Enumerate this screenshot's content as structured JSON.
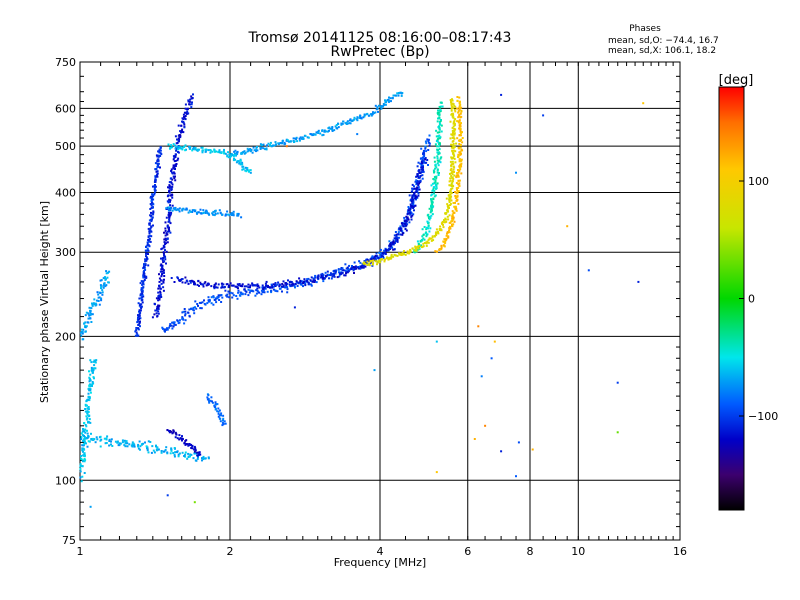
{
  "chart_data": {
    "type": "scatter",
    "title": "Tromsø 20141125 08:16:00–08:17:43",
    "subtitle": "RwPretec (Bp)",
    "xlabel": "Frequency [MHz]",
    "ylabel": "Stationary phase Virtual Height [km]",
    "x_scale": "log",
    "y_scale": "log",
    "xlim": [
      1,
      16
    ],
    "ylim": [
      75,
      750
    ],
    "x_ticks": [
      1,
      2,
      4,
      6,
      8,
      10,
      16
    ],
    "x_tick_labels": [
      "1",
      "2",
      "4",
      "6",
      "8",
      "10",
      "16"
    ],
    "x_grid": [
      1,
      2,
      4,
      6,
      8,
      10,
      16
    ],
    "y_ticks": [
      75,
      100,
      200,
      300,
      400,
      500,
      600,
      750
    ],
    "y_tick_labels": [
      "75",
      "100",
      "200",
      "300",
      "400",
      "500",
      "600",
      "750"
    ],
    "y_grid": [
      100,
      200,
      300,
      400,
      500,
      600
    ],
    "grid": true,
    "phases": {
      "title": "Phases",
      "line_o": "mean, sd,O: −74.4, 16.7",
      "line_x": "mean, sd,X: 106.1, 18.2"
    },
    "colorbar": {
      "label": "[deg]",
      "range": [
        -180,
        180
      ],
      "ticks": [
        100,
        0,
        -100
      ],
      "tick_labels": [
        "100",
        "0",
        "−100"
      ]
    },
    "traces": [
      {
        "x": [
          1.46,
          1.5,
          1.55,
          1.6,
          1.65,
          1.7,
          1.8,
          1.9,
          2.0,
          2.2,
          2.5,
          2.8,
          3.1,
          3.4,
          3.7,
          4.0,
          4.2,
          4.4,
          4.6,
          4.8,
          5.0
        ],
        "y": [
          205,
          208,
          213,
          218,
          224,
          230,
          236,
          241,
          244,
          247,
          252,
          258,
          266,
          274,
          283,
          295,
          310,
          330,
          365,
          430,
          520
        ],
        "phase": -95,
        "spread": 0.03
      },
      {
        "x": [
          1.55,
          1.7,
          1.9,
          2.2,
          2.5,
          2.9,
          3.3,
          3.8,
          4.2,
          4.6,
          4.9
        ],
        "y": [
          265,
          260,
          255,
          254,
          256,
          262,
          270,
          284,
          305,
          360,
          470
        ],
        "phase": -115,
        "spread": 0.025
      },
      {
        "x": [
          4.7,
          4.85,
          5.0,
          5.1,
          5.2,
          5.25,
          5.3
        ],
        "y": [
          300,
          315,
          340,
          380,
          440,
          520,
          620
        ],
        "phase": -40,
        "spread": 0.02
      },
      {
        "x": [
          3.7,
          4.0,
          4.3,
          4.6,
          4.9,
          5.1,
          5.3,
          5.45,
          5.55,
          5.6,
          5.62,
          5.6
        ],
        "y": [
          282,
          288,
          295,
          302,
          310,
          320,
          335,
          360,
          400,
          460,
          540,
          630
        ],
        "phase": 80,
        "spread": 0.018
      },
      {
        "x": [
          5.2,
          5.4,
          5.55,
          5.7,
          5.78,
          5.8,
          5.75
        ],
        "y": [
          300,
          315,
          340,
          390,
          460,
          540,
          630
        ],
        "phase": 115,
        "spread": 0.015
      },
      {
        "x": [
          2.0,
          2.4,
          2.8,
          3.2,
          3.6,
          3.9,
          4.1,
          4.3,
          4.45
        ],
        "y": [
          480,
          500,
          520,
          545,
          570,
          590,
          615,
          640,
          645
        ],
        "phase": -70,
        "spread": 0.02
      },
      {
        "x": [
          1.42,
          1.45,
          1.47,
          1.5,
          1.52,
          1.55,
          1.58,
          1.62,
          1.65,
          1.68
        ],
        "y": [
          220,
          250,
          290,
          340,
          400,
          460,
          520,
          570,
          610,
          640
        ],
        "phase": -115,
        "spread": 0.02
      },
      {
        "x": [
          1.3,
          1.34,
          1.38,
          1.41,
          1.45
        ],
        "y": [
          200,
          260,
          330,
          410,
          500
        ],
        "phase": -105,
        "spread": 0.015
      },
      {
        "x": [
          1.5,
          1.65,
          1.8,
          1.95,
          2.05,
          2.2
        ],
        "y": [
          500,
          495,
          490,
          485,
          470,
          440
        ],
        "phase": -60,
        "spread": 0.02
      },
      {
        "x": [
          1.5,
          1.7,
          1.9,
          2.1
        ],
        "y": [
          370,
          365,
          362,
          360
        ],
        "phase": -75,
        "spread": 0.02
      },
      {
        "x": [
          1.0,
          1.06,
          1.12,
          1.2,
          1.3,
          1.4,
          1.5,
          1.6,
          1.7,
          1.8
        ],
        "y": [
          124,
          122,
          121,
          120,
          119,
          117,
          115,
          113,
          112,
          110
        ],
        "phase": -65,
        "spread": 0.035
      },
      {
        "x": [
          1.0,
          1.03,
          1.06,
          1.1,
          1.14
        ],
        "y": [
          200,
          215,
          230,
          250,
          275
        ],
        "phase": -70,
        "spread": 0.03
      },
      {
        "x": [
          1.0,
          1.02,
          1.04,
          1.05,
          1.07
        ],
        "y": [
          100,
          120,
          145,
          160,
          180
        ],
        "phase": -60,
        "spread": 0.025
      },
      {
        "x": [
          1.5,
          1.6,
          1.7,
          1.75
        ],
        "y": [
          128,
          122,
          116,
          112
        ],
        "phase": -120,
        "spread": 0.015
      },
      {
        "x": [
          1.8,
          1.85,
          1.9,
          1.95
        ],
        "y": [
          150,
          145,
          140,
          130
        ],
        "phase": -85,
        "spread": 0.02
      }
    ],
    "points": [
      {
        "x": 7.0,
        "y": 640,
        "phase": -110
      },
      {
        "x": 8.5,
        "y": 580,
        "phase": -100
      },
      {
        "x": 13.5,
        "y": 615,
        "phase": 110
      },
      {
        "x": 7.5,
        "y": 440,
        "phase": -75
      },
      {
        "x": 9.5,
        "y": 340,
        "phase": 120
      },
      {
        "x": 10.5,
        "y": 275,
        "phase": -95
      },
      {
        "x": 13.2,
        "y": 260,
        "phase": -110
      },
      {
        "x": 6.3,
        "y": 210,
        "phase": 140
      },
      {
        "x": 6.8,
        "y": 195,
        "phase": 115
      },
      {
        "x": 6.7,
        "y": 180,
        "phase": -90
      },
      {
        "x": 6.4,
        "y": 165,
        "phase": -80
      },
      {
        "x": 5.2,
        "y": 195,
        "phase": -60
      },
      {
        "x": 6.5,
        "y": 130,
        "phase": 140
      },
      {
        "x": 6.2,
        "y": 122,
        "phase": 120
      },
      {
        "x": 7.0,
        "y": 115,
        "phase": -110
      },
      {
        "x": 7.6,
        "y": 120,
        "phase": -95
      },
      {
        "x": 8.1,
        "y": 116,
        "phase": 120
      },
      {
        "x": 7.5,
        "y": 102,
        "phase": -90
      },
      {
        "x": 5.2,
        "y": 104,
        "phase": 110
      },
      {
        "x": 12.0,
        "y": 160,
        "phase": -100
      },
      {
        "x": 12.0,
        "y": 126,
        "phase": 30
      },
      {
        "x": 2.7,
        "y": 230,
        "phase": -110
      },
      {
        "x": 1.7,
        "y": 90,
        "phase": 35
      },
      {
        "x": 1.05,
        "y": 88,
        "phase": -70
      },
      {
        "x": 1.5,
        "y": 93,
        "phase": -100
      },
      {
        "x": 2.6,
        "y": 500,
        "phase": 150
      },
      {
        "x": 3.6,
        "y": 530,
        "phase": -80
      },
      {
        "x": 3.9,
        "y": 170,
        "phase": -70
      }
    ]
  }
}
